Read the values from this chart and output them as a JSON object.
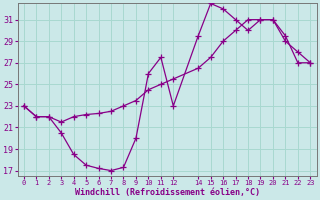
{
  "bg_color": "#cbe8e8",
  "grid_color": "#a8d8d0",
  "line_color": "#880088",
  "xlabel": "Windchill (Refroidissement éolien,°C)",
  "xlim": [
    -0.5,
    23.5
  ],
  "ylim": [
    16.5,
    32.5
  ],
  "yticks": [
    17,
    19,
    21,
    23,
    25,
    27,
    29,
    31
  ],
  "xticks": [
    0,
    1,
    2,
    3,
    4,
    5,
    6,
    7,
    8,
    9,
    10,
    11,
    12,
    14,
    15,
    16,
    17,
    18,
    19,
    20,
    21,
    22,
    23
  ],
  "line1_x": [
    0,
    1,
    2,
    3,
    4,
    5,
    6,
    7,
    8,
    9,
    10,
    11,
    12,
    14,
    15,
    16,
    17,
    18,
    19,
    20,
    21,
    22,
    23
  ],
  "line1_y": [
    23,
    22,
    22,
    20.5,
    18.5,
    17.5,
    17.2,
    17,
    17.3,
    20,
    26,
    27.5,
    23,
    29.5,
    32.5,
    32,
    31,
    30,
    31,
    31,
    29.5,
    27,
    27
  ],
  "line2_x": [
    0,
    1,
    2,
    3,
    4,
    5,
    6,
    7,
    8,
    9,
    10,
    11,
    12,
    14,
    15,
    16,
    17,
    18,
    19,
    20,
    21,
    22,
    23
  ],
  "line2_y": [
    23,
    22,
    22,
    21.5,
    22,
    22.2,
    22.3,
    22.5,
    23,
    23.5,
    24.5,
    25,
    25.5,
    26.5,
    27.5,
    29,
    30,
    31,
    31,
    31,
    29,
    28,
    27
  ]
}
